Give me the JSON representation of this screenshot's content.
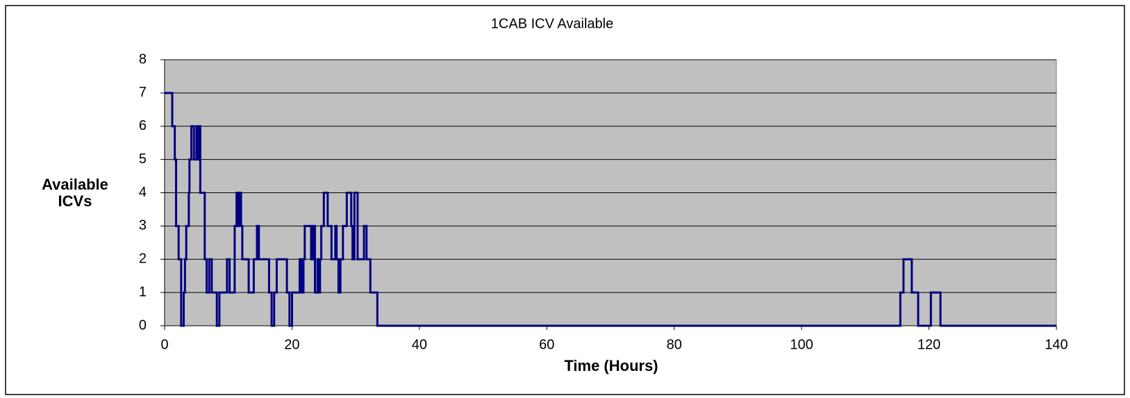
{
  "chart_data": {
    "type": "line",
    "step": true,
    "title": "1CAB ICV Available",
    "x_label": "Time (Hours)",
    "y_label": [
      "Available",
      "ICVs"
    ],
    "series": [
      {
        "name": "ICVs",
        "color": "#000080",
        "x": [
          0,
          1.2,
          1.6,
          1.8,
          2.2,
          2.6,
          3.0,
          3.2,
          3.4,
          3.8,
          3.9,
          4.2,
          4.6,
          5.0,
          5.2,
          5.4,
          5.6,
          6.3,
          6.6,
          7.0,
          7.4,
          8.2,
          8.6,
          9.8,
          10.2,
          11.0,
          11.3,
          11.6,
          11.8,
          12.0,
          12.2,
          12.6,
          13.2,
          14.0,
          14.5,
          14.8,
          16.4,
          16.8,
          17.2,
          17.6,
          19.2,
          19.6,
          20.0,
          21.2,
          21.5,
          21.8,
          22.0,
          23.0,
          23.3,
          23.6,
          24.0,
          24.2,
          24.4,
          24.6,
          25.0,
          25.6,
          26.2,
          26.8,
          27.0,
          27.3,
          27.6,
          28.0,
          28.6,
          29.3,
          29.5,
          29.8,
          30.3,
          31.3,
          31.7,
          32.3,
          33.4,
          115.5,
          116.0,
          117.3,
          118.3,
          120.3,
          121.8,
          140
        ],
        "values": [
          7,
          6,
          5,
          3,
          2,
          0,
          1,
          2,
          3,
          4,
          5,
          6,
          5,
          6,
          5,
          6,
          4,
          2,
          1,
          2,
          1,
          0,
          1,
          2,
          1,
          3,
          4,
          3,
          4,
          3,
          2,
          2,
          1,
          2,
          3,
          2,
          1,
          0,
          1,
          2,
          1,
          0,
          1,
          2,
          1,
          2,
          3,
          2,
          3,
          1,
          2,
          1,
          2,
          3,
          4,
          3,
          2,
          3,
          2,
          1,
          2,
          3,
          4,
          3,
          2,
          4,
          2,
          3,
          2,
          1,
          0,
          1,
          2,
          1,
          0,
          1,
          0,
          0
        ]
      }
    ],
    "xlim": [
      0,
      140
    ],
    "xticks": [
      0,
      20,
      40,
      60,
      80,
      100,
      120,
      140
    ],
    "ylim": [
      0,
      8
    ],
    "yticks": [
      0,
      1,
      2,
      3,
      4,
      5,
      6,
      7,
      8
    ],
    "grid": true,
    "plot_background": "#c0c0c0"
  }
}
